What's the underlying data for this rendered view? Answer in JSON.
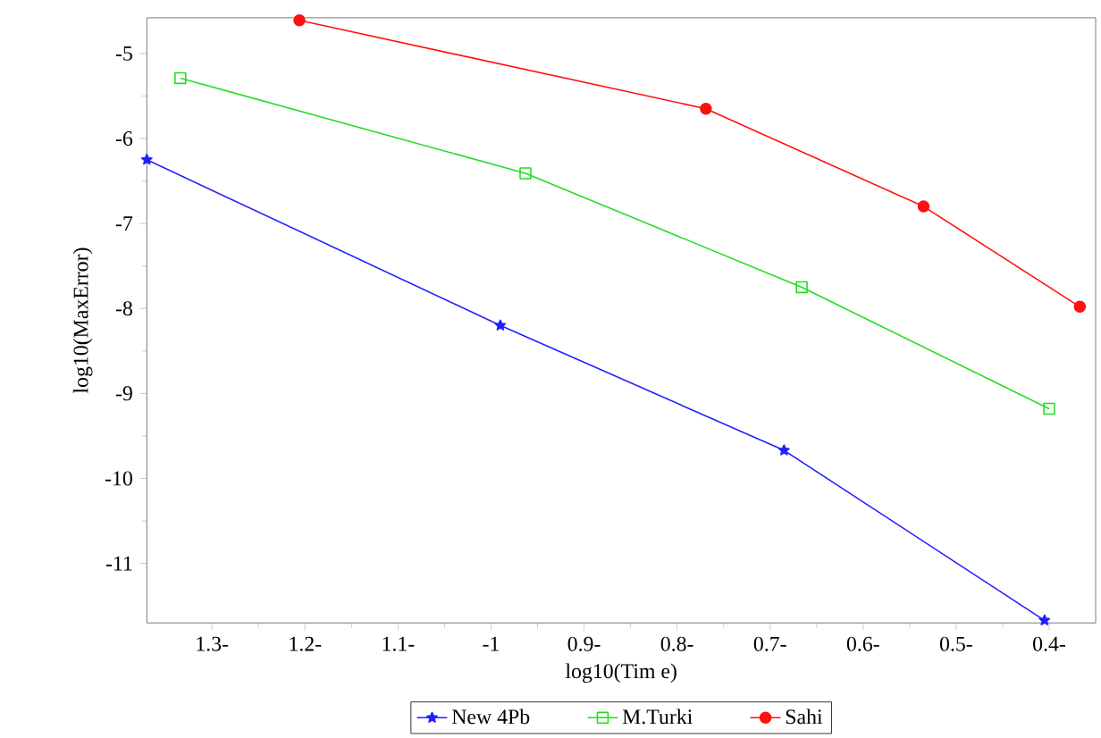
{
  "chart_data": {
    "type": "line",
    "xlabel": "log10(Tim e)",
    "ylabel": "log10(MaxError)",
    "xlim": [
      -1.37,
      -0.35
    ],
    "ylim": [
      -11.7,
      -4.58
    ],
    "xticks": [
      {
        "value": -1.3,
        "label": "1.3-"
      },
      {
        "value": -1.2,
        "label": "1.2-"
      },
      {
        "value": -1.1,
        "label": "1.1-"
      },
      {
        "value": -1.0,
        "label": "-1"
      },
      {
        "value": -0.9,
        "label": "0.9-"
      },
      {
        "value": -0.8,
        "label": "0.8-"
      },
      {
        "value": -0.7,
        "label": "0.7-"
      },
      {
        "value": -0.6,
        "label": "0.6-"
      },
      {
        "value": -0.5,
        "label": "0.5-"
      },
      {
        "value": -0.4,
        "label": "0.4-"
      }
    ],
    "yticks": [
      -5,
      -6,
      -7,
      -8,
      -9,
      -10,
      -11
    ],
    "legend": "bottom",
    "grid": false,
    "line_style": "solid",
    "series": [
      {
        "name": "New 4Pb",
        "color": "#2020ff",
        "marker": "star",
        "x": [
          -1.37,
          -0.99,
          -0.685,
          -0.405
        ],
        "values": [
          -6.25,
          -8.2,
          -9.67,
          -11.67
        ]
      },
      {
        "name": "M.Turki",
        "color": "#22dd22",
        "marker": "square",
        "x": [
          -1.334,
          -0.963,
          -0.666,
          -0.4
        ],
        "values": [
          -5.29,
          -6.41,
          -7.75,
          -9.18
        ]
      },
      {
        "name": "Sahi",
        "color": "#ff1010",
        "marker": "circle",
        "x": [
          -1.206,
          -0.769,
          -0.535,
          -0.367
        ],
        "values": [
          -4.61,
          -5.65,
          -6.8,
          -7.98
        ]
      }
    ]
  }
}
